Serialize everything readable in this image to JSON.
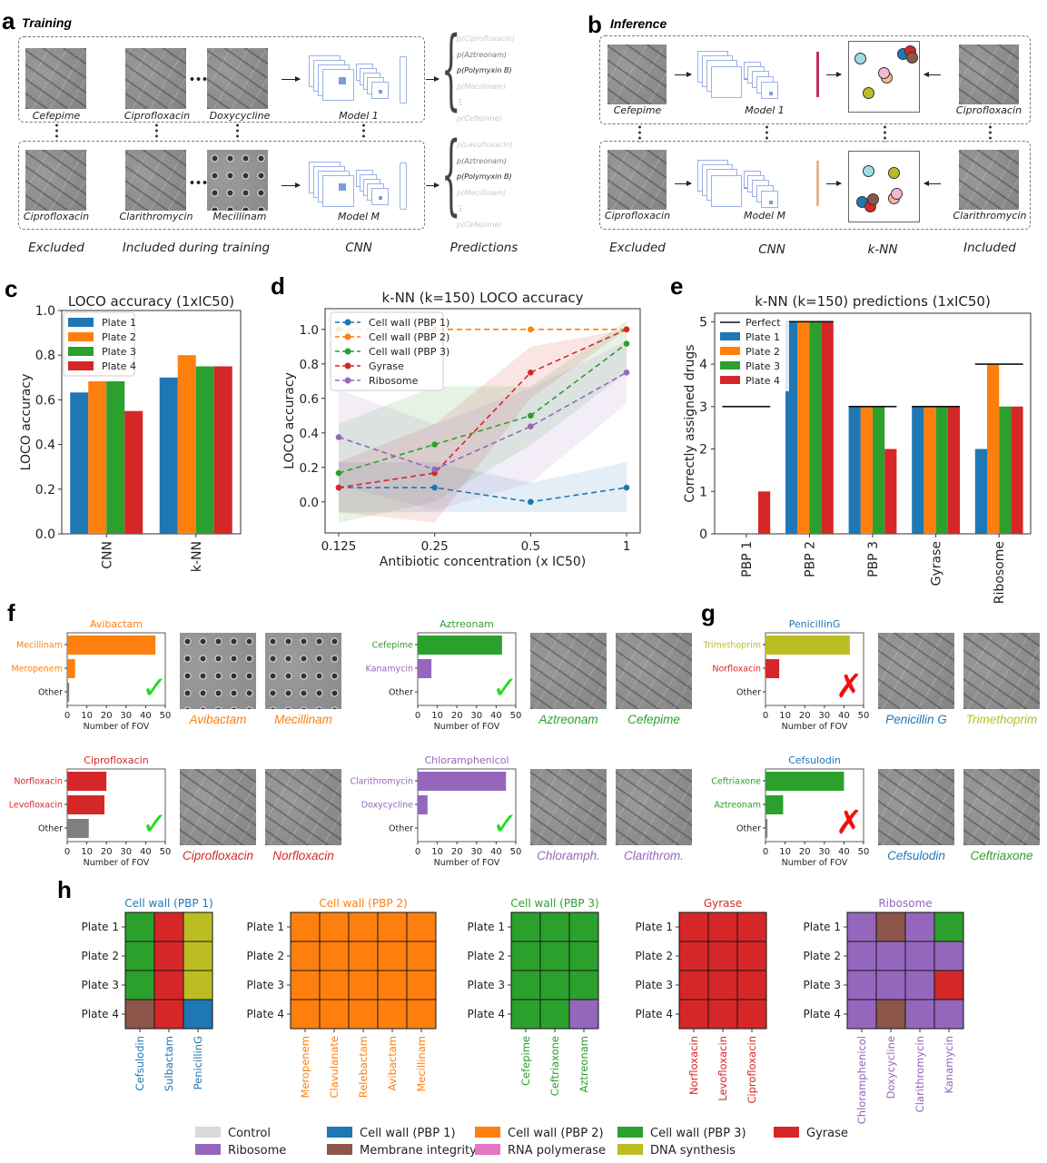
{
  "panels": {
    "a": {
      "letter": "a",
      "title": "Training",
      "rows": [
        {
          "excluded": "Cefepime",
          "included": [
            "Ciprofloxacin",
            "Doxycycline"
          ],
          "model": "Model 1",
          "predictions": [
            {
              "label": "p(Ciprofloxacin)",
              "emphasis": "faint"
            },
            {
              "label": "p(Aztreonam)",
              "emphasis": "medium"
            },
            {
              "label": "p(Polymyxin B)",
              "emphasis": "strong"
            },
            {
              "label": "p(Mecillinam)",
              "emphasis": "faint"
            },
            {
              "label": "⋮",
              "emphasis": "medium"
            },
            {
              "label": "p(Cefepime)",
              "emphasis": "faint"
            }
          ]
        },
        {
          "excluded": "Ciprofloxacin",
          "included": [
            "Clarithromycin",
            "Mecillinam"
          ],
          "model": "Model M",
          "predictions": [
            {
              "label": "p(Levofloxacin)",
              "emphasis": "faint"
            },
            {
              "label": "p(Aztreonam)",
              "emphasis": "medium"
            },
            {
              "label": "p(Polymyxin B)",
              "emphasis": "strong"
            },
            {
              "label": "p(Mecillinam)",
              "emphasis": "faint"
            },
            {
              "label": "⋮",
              "emphasis": "medium"
            },
            {
              "label": "p(Cefepime)",
              "emphasis": "faint"
            }
          ]
        }
      ],
      "ellipsis": "···",
      "column_labels": [
        "Excluded",
        "Included during training",
        "CNN",
        "Predictions"
      ]
    },
    "b": {
      "letter": "b",
      "title": "Inference",
      "rows": [
        {
          "excluded": "Cefepime",
          "model": "Model 1",
          "included": "Ciprofloxacin",
          "feature_color": "#c0305a"
        },
        {
          "excluded": "Ciprofloxacin",
          "model": "Model M",
          "included": "Clarithromycin",
          "feature_color": "#e8b48f"
        }
      ],
      "column_labels": [
        "Excluded",
        "CNN",
        "k-NN",
        "Included"
      ]
    },
    "c": {
      "letter": "c"
    },
    "d": {
      "letter": "d"
    },
    "e": {
      "letter": "e"
    },
    "f": {
      "letter": "f"
    },
    "g": {
      "letter": "g"
    },
    "h": {
      "letter": "h"
    }
  },
  "colors": {
    "Control": "#d9d9d9",
    "Cell wall (PBP 1)": "#1f77b4",
    "Cell wall (PBP 2)": "#ff7f0e",
    "Cell wall (PBP 3)": "#2ca02c",
    "Gyrase": "#d62728",
    "Ribosome": "#9467bd",
    "Membrane integrity": "#8c564b",
    "RNA polymerase": "#e377c2",
    "DNA synthesis": "#bcbd22",
    "Other": "#7f7f7f",
    "check": "#22dd22",
    "cross": "#ee1111"
  },
  "chart_data": [
    {
      "id": "c",
      "type": "bar",
      "title": "LOCO accuracy (1xIC50)",
      "xlabel": "",
      "ylabel": "LOCO accuracy",
      "categories": [
        "CNN",
        "k-NN"
      ],
      "series": [
        {
          "name": "Plate 1",
          "values": [
            0.633,
            0.7
          ]
        },
        {
          "name": "Plate 2",
          "values": [
            0.683,
            0.8
          ]
        },
        {
          "name": "Plate 3",
          "values": [
            0.683,
            0.75
          ]
        },
        {
          "name": "Plate 4",
          "values": [
            0.55,
            0.75
          ]
        }
      ],
      "ylim": [
        0,
        1.0
      ],
      "yticks": [
        "0.0",
        "0.2",
        "0.4",
        "0.6",
        "0.8",
        "1.0"
      ],
      "legend": "top-left",
      "grid": false
    },
    {
      "id": "d",
      "type": "line",
      "title": "k-NN (k=150) LOCO accuracy",
      "xlabel": "Antibiotic concentration (x IC50)",
      "ylabel": "LOCO accuracy",
      "x": [
        "0.125",
        "0.25",
        "0.5",
        "1"
      ],
      "series": [
        {
          "name": "Cell wall (PBP 1)",
          "values": [
            0.083,
            0.083,
            0.0,
            0.083
          ],
          "band_low": [
            -0.06,
            -0.06,
            -0.06,
            -0.06
          ],
          "band_high": [
            0.23,
            0.23,
            0.11,
            0.23
          ]
        },
        {
          "name": "Cell wall (PBP 2)",
          "values": [
            1.0,
            1.0,
            1.0,
            1.0
          ],
          "band_low": [
            1.0,
            1.0,
            1.0,
            1.0
          ],
          "band_high": [
            1.0,
            1.0,
            1.0,
            1.0
          ]
        },
        {
          "name": "Cell wall (PBP 3)",
          "values": [
            0.167,
            0.333,
            0.5,
            0.917
          ],
          "band_low": [
            -0.12,
            0.0,
            0.33,
            0.75
          ],
          "band_high": [
            0.45,
            0.67,
            0.67,
            1.05
          ]
        },
        {
          "name": "Gyrase",
          "values": [
            0.083,
            0.167,
            0.75,
            1.0
          ],
          "band_low": [
            -0.06,
            -0.12,
            0.6,
            1.0
          ],
          "band_high": [
            0.23,
            0.45,
            0.9,
            1.0
          ]
        },
        {
          "name": "Ribosome",
          "values": [
            0.375,
            0.188,
            0.4375,
            0.75
          ],
          "band_low": [
            0.1,
            -0.05,
            0.11,
            0.57
          ],
          "band_high": [
            0.65,
            0.45,
            0.66,
            0.93
          ]
        }
      ],
      "ylim": [
        -0.18,
        1.12
      ],
      "yticks": [
        "0.0",
        "0.2",
        "0.4",
        "0.6",
        "0.8",
        "1.0"
      ],
      "legend": "top-left",
      "grid": false
    },
    {
      "id": "e",
      "type": "bar",
      "title": "k-NN (k=150) predictions (1xIC50)",
      "xlabel": "",
      "ylabel": "Correctly assigned drugs",
      "categories": [
        "PBP 1",
        "PBP 2",
        "PBP 3",
        "Gyrase",
        "Ribosome"
      ],
      "perfect": {
        "name": "Perfect",
        "values": [
          3,
          5,
          3,
          3,
          4
        ]
      },
      "series": [
        {
          "name": "Plate 1",
          "values": [
            0,
            5,
            3,
            3,
            2
          ]
        },
        {
          "name": "Plate 2",
          "values": [
            0,
            5,
            3,
            3,
            4
          ]
        },
        {
          "name": "Plate 3",
          "values": [
            0,
            5,
            3,
            3,
            3
          ]
        },
        {
          "name": "Plate 4",
          "values": [
            1,
            5,
            2,
            3,
            3
          ]
        }
      ],
      "ylim": [
        0,
        5.2
      ],
      "yticks": [
        "0",
        "1",
        "2",
        "3",
        "4",
        "5"
      ],
      "legend": "top-left",
      "grid": false
    },
    {
      "id": "f1",
      "type": "bar",
      "orientation": "horizontal",
      "title": "Avibactam",
      "title_class": "Cell wall (PBP 2)",
      "xlabel": "Number of FOV",
      "categories": [
        {
          "label": "Mecillinam",
          "class": "Cell wall (PBP 2)"
        },
        {
          "label": "Meropenem",
          "class": "Cell wall (PBP 2)"
        },
        {
          "label": "Other",
          "class": "Other"
        }
      ],
      "values": [
        45,
        4,
        1
      ],
      "xlim": [
        0,
        50
      ],
      "xticks": [
        "0",
        "10",
        "20",
        "30",
        "40",
        "50"
      ],
      "verdict": "correct",
      "images": [
        {
          "label": "Avibactam",
          "class": "Cell wall (PBP 2)"
        },
        {
          "label": "Mecillinam",
          "class": "Cell wall (PBP 2)"
        }
      ]
    },
    {
      "id": "f2",
      "type": "bar",
      "orientation": "horizontal",
      "title": "Ciprofloxacin",
      "title_class": "Gyrase",
      "xlabel": "Number of FOV",
      "categories": [
        {
          "label": "Norfloxacin",
          "class": "Gyrase"
        },
        {
          "label": "Levofloxacin",
          "class": "Gyrase"
        },
        {
          "label": "Other",
          "class": "Other"
        }
      ],
      "values": [
        20,
        19,
        11
      ],
      "xlim": [
        0,
        50
      ],
      "xticks": [
        "0",
        "10",
        "20",
        "30",
        "40",
        "50"
      ],
      "verdict": "correct",
      "images": [
        {
          "label": "Ciprofloxacin",
          "class": "Gyrase"
        },
        {
          "label": "Norfloxacin",
          "class": "Gyrase"
        }
      ]
    },
    {
      "id": "f3",
      "type": "bar",
      "orientation": "horizontal",
      "title": "Aztreonam",
      "title_class": "Cell wall (PBP 3)",
      "xlabel": "Number of FOV",
      "categories": [
        {
          "label": "Cefepime",
          "class": "Cell wall (PBP 3)"
        },
        {
          "label": "Kanamycin",
          "class": "Ribosome"
        },
        {
          "label": "Other",
          "class": "Other"
        }
      ],
      "values": [
        43,
        7,
        0
      ],
      "xlim": [
        0,
        50
      ],
      "xticks": [
        "0",
        "10",
        "20",
        "30",
        "40",
        "50"
      ],
      "verdict": "correct",
      "images": [
        {
          "label": "Aztreonam",
          "class": "Cell wall (PBP 3)"
        },
        {
          "label": "Cefepime",
          "class": "Cell wall (PBP 3)"
        }
      ]
    },
    {
      "id": "f4",
      "type": "bar",
      "orientation": "horizontal",
      "title": "Chloramphenicol",
      "title_class": "Ribosome",
      "xlabel": "Number of FOV",
      "categories": [
        {
          "label": "Clarithromycin",
          "class": "Ribosome"
        },
        {
          "label": "Doxycycline",
          "class": "Ribosome"
        },
        {
          "label": "Other",
          "class": "Other"
        }
      ],
      "values": [
        45,
        5,
        0
      ],
      "xlim": [
        0,
        50
      ],
      "xticks": [
        "0",
        "10",
        "20",
        "30",
        "40",
        "50"
      ],
      "verdict": "correct",
      "images": [
        {
          "label": "Chloramph.",
          "class": "Ribosome"
        },
        {
          "label": "Clarithrom.",
          "class": "Ribosome"
        }
      ]
    },
    {
      "id": "g1",
      "type": "bar",
      "orientation": "horizontal",
      "title": "PenicillinG",
      "title_class": "Cell wall (PBP 1)",
      "xlabel": "Number of FOV",
      "categories": [
        {
          "label": "Trimethoprim",
          "class": "DNA synthesis"
        },
        {
          "label": "Norfloxacin",
          "class": "Gyrase"
        },
        {
          "label": "Other",
          "class": "Other"
        }
      ],
      "values": [
        43,
        7,
        0
      ],
      "xlim": [
        0,
        50
      ],
      "xticks": [
        "0",
        "10",
        "20",
        "30",
        "40",
        "50"
      ],
      "verdict": "incorrect",
      "images": [
        {
          "label": "Penicillin G",
          "class": "Cell wall (PBP 1)"
        },
        {
          "label": "Trimethoprim",
          "class": "DNA synthesis"
        }
      ]
    },
    {
      "id": "g2",
      "type": "bar",
      "orientation": "horizontal",
      "title": "Cefsulodin",
      "title_class": "Cell wall (PBP 1)",
      "xlabel": "Number of FOV",
      "categories": [
        {
          "label": "Ceftriaxone",
          "class": "Cell wall (PBP 3)"
        },
        {
          "label": "Aztreonam",
          "class": "Cell wall (PBP 3)"
        },
        {
          "label": "Other",
          "class": "Other"
        }
      ],
      "values": [
        40,
        9,
        1
      ],
      "xlim": [
        0,
        50
      ],
      "xticks": [
        "0",
        "10",
        "20",
        "30",
        "40",
        "50"
      ],
      "verdict": "incorrect",
      "images": [
        {
          "label": "Cefsulodin",
          "class": "Cell wall (PBP 1)"
        },
        {
          "label": "Ceftriaxone",
          "class": "Cell wall (PBP 3)"
        }
      ]
    },
    {
      "id": "h",
      "type": "heatmap",
      "rows": [
        "Plate 1",
        "Plate 2",
        "Plate 3",
        "Plate 4"
      ],
      "groups": [
        {
          "title": "Cell wall (PBP 1)",
          "class": "Cell wall (PBP 1)",
          "columns": [
            "Cefsulodin",
            "Sulbactam",
            "PenicillinG"
          ],
          "cells": [
            [
              "Cell wall (PBP 3)",
              "Gyrase",
              "DNA synthesis"
            ],
            [
              "Cell wall (PBP 3)",
              "Gyrase",
              "DNA synthesis"
            ],
            [
              "Cell wall (PBP 3)",
              "Gyrase",
              "DNA synthesis"
            ],
            [
              "Membrane integrity",
              "Gyrase",
              "Cell wall (PBP 1)"
            ]
          ]
        },
        {
          "title": "Cell wall (PBP 2)",
          "class": "Cell wall (PBP 2)",
          "columns": [
            "Meropenem",
            "Clavulanate",
            "Relebactam",
            "Avibactam",
            "Mecillinam"
          ],
          "cells": [
            [
              "Cell wall (PBP 2)",
              "Cell wall (PBP 2)",
              "Cell wall (PBP 2)",
              "Cell wall (PBP 2)",
              "Cell wall (PBP 2)"
            ],
            [
              "Cell wall (PBP 2)",
              "Cell wall (PBP 2)",
              "Cell wall (PBP 2)",
              "Cell wall (PBP 2)",
              "Cell wall (PBP 2)"
            ],
            [
              "Cell wall (PBP 2)",
              "Cell wall (PBP 2)",
              "Cell wall (PBP 2)",
              "Cell wall (PBP 2)",
              "Cell wall (PBP 2)"
            ],
            [
              "Cell wall (PBP 2)",
              "Cell wall (PBP 2)",
              "Cell wall (PBP 2)",
              "Cell wall (PBP 2)",
              "Cell wall (PBP 2)"
            ]
          ]
        },
        {
          "title": "Cell wall (PBP 3)",
          "class": "Cell wall (PBP 3)",
          "columns": [
            "Cefepime",
            "Ceftriaxone",
            "Aztreonam"
          ],
          "cells": [
            [
              "Cell wall (PBP 3)",
              "Cell wall (PBP 3)",
              "Cell wall (PBP 3)"
            ],
            [
              "Cell wall (PBP 3)",
              "Cell wall (PBP 3)",
              "Cell wall (PBP 3)"
            ],
            [
              "Cell wall (PBP 3)",
              "Cell wall (PBP 3)",
              "Cell wall (PBP 3)"
            ],
            [
              "Cell wall (PBP 3)",
              "Cell wall (PBP 3)",
              "Ribosome"
            ]
          ]
        },
        {
          "title": "Gyrase",
          "class": "Gyrase",
          "columns": [
            "Norfloxacin",
            "Levofloxacin",
            "Ciprofloxacin"
          ],
          "cells": [
            [
              "Gyrase",
              "Gyrase",
              "Gyrase"
            ],
            [
              "Gyrase",
              "Gyrase",
              "Gyrase"
            ],
            [
              "Gyrase",
              "Gyrase",
              "Gyrase"
            ],
            [
              "Gyrase",
              "Gyrase",
              "Gyrase"
            ]
          ]
        },
        {
          "title": "Ribosome",
          "class": "Ribosome",
          "columns": [
            "Chloramphenicol",
            "Doxycycline",
            "Clarithromycin",
            "Kanamycin"
          ],
          "cells": [
            [
              "Ribosome",
              "Membrane integrity",
              "Ribosome",
              "Cell wall (PBP 3)"
            ],
            [
              "Ribosome",
              "Ribosome",
              "Ribosome",
              "Ribosome"
            ],
            [
              "Ribosome",
              "Ribosome",
              "Ribosome",
              "Gyrase"
            ],
            [
              "Ribosome",
              "Membrane integrity",
              "Ribosome",
              "Ribosome"
            ]
          ]
        }
      ],
      "legend": [
        "Control",
        "Cell wall (PBP 1)",
        "Cell wall (PBP 2)",
        "Cell wall (PBP 3)",
        "Gyrase",
        "Ribosome",
        "Membrane integrity",
        "RNA polymerase",
        "DNA synthesis"
      ],
      "legend_placement": "bottom"
    }
  ]
}
